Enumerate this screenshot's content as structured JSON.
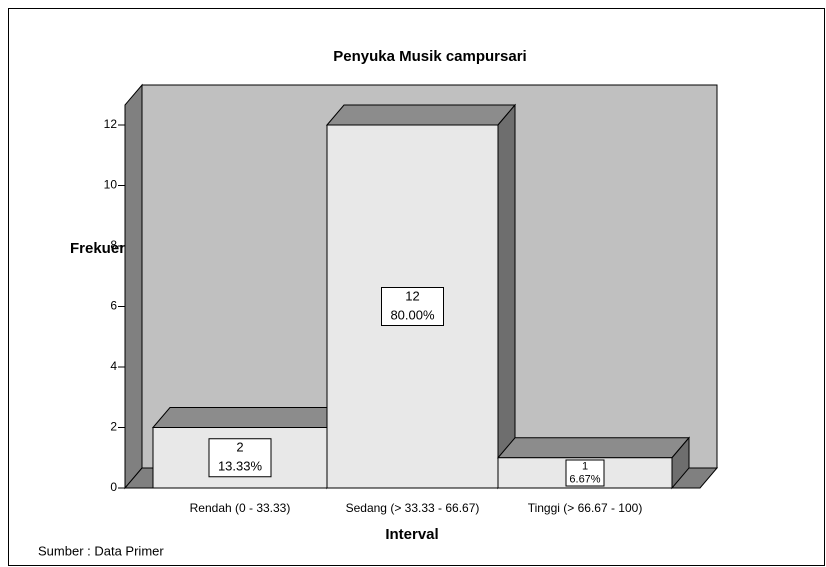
{
  "chart_data": {
    "type": "bar3d",
    "title": "Penyuka Musik  campursari",
    "x_label": "Interval",
    "y_label": "Frekuensi",
    "note": "Sumber : Data Primer",
    "categories": [
      "Rendah (0 - 33.33)",
      "Sedang (> 33.33 - 66.67)",
      "Tinggi (> 66.67 - 100)"
    ],
    "values": [
      2,
      12,
      1
    ],
    "percents": [
      13.33,
      80,
      6.67
    ],
    "percent_labels": [
      "13.33%",
      "80.00%",
      "6.67%"
    ],
    "color": "#e8e8e8",
    "ylim": [
      0,
      12
    ],
    "yticks": [
      0,
      2,
      4,
      6,
      8,
      10,
      12
    ]
  }
}
